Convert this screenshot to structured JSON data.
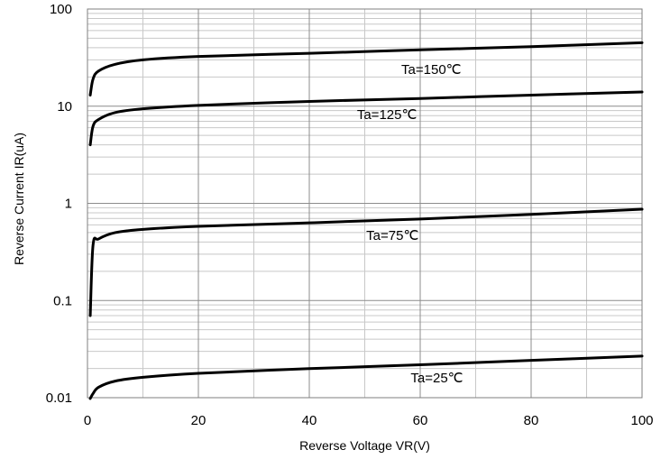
{
  "chart_data": {
    "type": "line",
    "title": "",
    "xlabel": "Reverse Voltage   VR(V)",
    "ylabel": "Reverse Current   IR(uA)",
    "xlim": [
      0,
      100
    ],
    "ylim": [
      0.01,
      100
    ],
    "yscale": "log",
    "grid": true,
    "legend": "none",
    "x_ticks": [
      "0",
      "20",
      "40",
      "60",
      "80",
      "100"
    ],
    "y_ticks": [
      "0.01",
      "0.1",
      "1",
      "10",
      "100"
    ],
    "series": [
      {
        "name": "Ta=150℃",
        "x": [
          0.5,
          1,
          2,
          5,
          10,
          20,
          40,
          60,
          80,
          100
        ],
        "y": [
          13,
          19,
          23,
          27,
          30,
          32.5,
          35,
          38,
          41,
          45
        ]
      },
      {
        "name": "Ta=125℃",
        "x": [
          0.5,
          1,
          2,
          5,
          10,
          20,
          40,
          60,
          80,
          100
        ],
        "y": [
          4,
          6.2,
          7.3,
          8.6,
          9.4,
          10.2,
          11.2,
          12,
          13,
          14
        ]
      },
      {
        "name": "Ta=75℃",
        "x": [
          0.5,
          1,
          2,
          5,
          10,
          20,
          40,
          60,
          80,
          100
        ],
        "y": [
          0.07,
          0.37,
          0.43,
          0.5,
          0.54,
          0.58,
          0.63,
          0.69,
          0.77,
          0.87
        ]
      },
      {
        "name": "Ta=25℃",
        "x": [
          0.5,
          1,
          2,
          5,
          10,
          20,
          40,
          60,
          80,
          100
        ],
        "y": [
          0.0098,
          0.011,
          0.0128,
          0.0148,
          0.0162,
          0.0178,
          0.0199,
          0.0218,
          0.0242,
          0.0268
        ]
      }
    ]
  }
}
